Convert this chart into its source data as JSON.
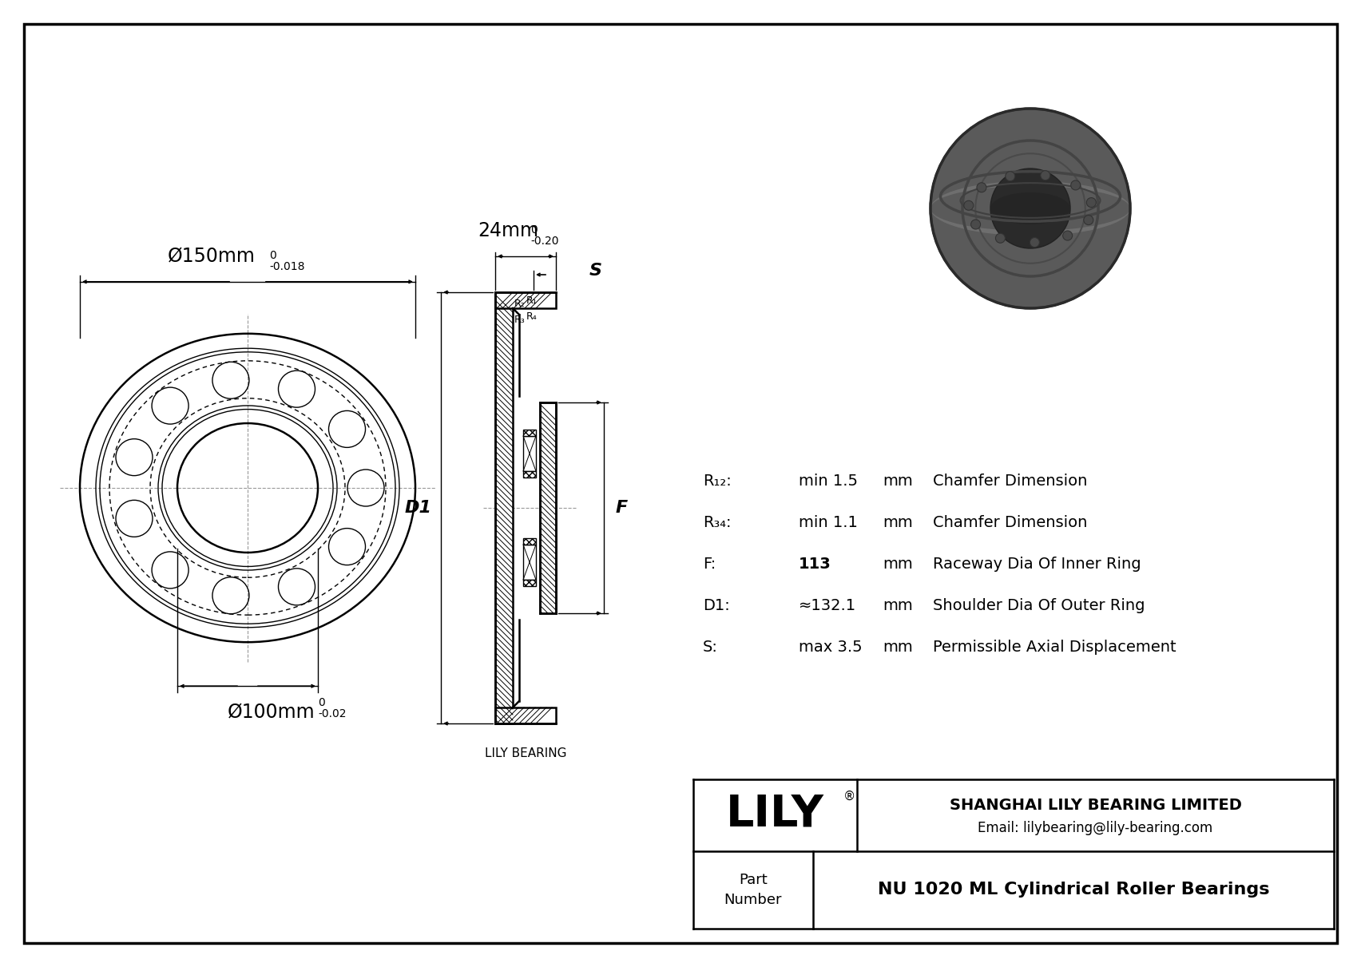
{
  "bg_color": "#ffffff",
  "line_color": "#000000",
  "title": "NU 1020 ML Cylindrical Roller Bearings",
  "company": "SHANGHAI LILY BEARING LIMITED",
  "email": "Email: lilybearing@lily-bearing.com",
  "lily_label": "LILY",
  "lily_bearing_label": "LILY BEARING",
  "dim_outer": "Ø150mm",
  "dim_outer_tol_top": "0",
  "dim_outer_tol_bot": "-0.018",
  "dim_inner": "Ø100mm",
  "dim_inner_tol_top": "0",
  "dim_inner_tol_bot": "-0.02",
  "dim_width": "24mm",
  "dim_width_tol_top": "0",
  "dim_width_tol_bot": "-0.20",
  "params": [
    {
      "label": "R1,2:",
      "value": "min 1.5",
      "unit": "mm",
      "desc": "Chamfer Dimension"
    },
    {
      "label": "R3,4:",
      "value": "min 1.1",
      "unit": "mm",
      "desc": "Chamfer Dimension"
    },
    {
      "label": "F:",
      "value": "113",
      "unit": "mm",
      "desc": "Raceway Dia Of Inner Ring"
    },
    {
      "label": "D1:",
      "value": "≈132.1",
      "unit": "mm",
      "desc": "Shoulder Dia Of Outer Ring"
    },
    {
      "label": "S:",
      "value": "max 3.5",
      "unit": "mm",
      "desc": "Permissible Axial Displacement"
    }
  ]
}
